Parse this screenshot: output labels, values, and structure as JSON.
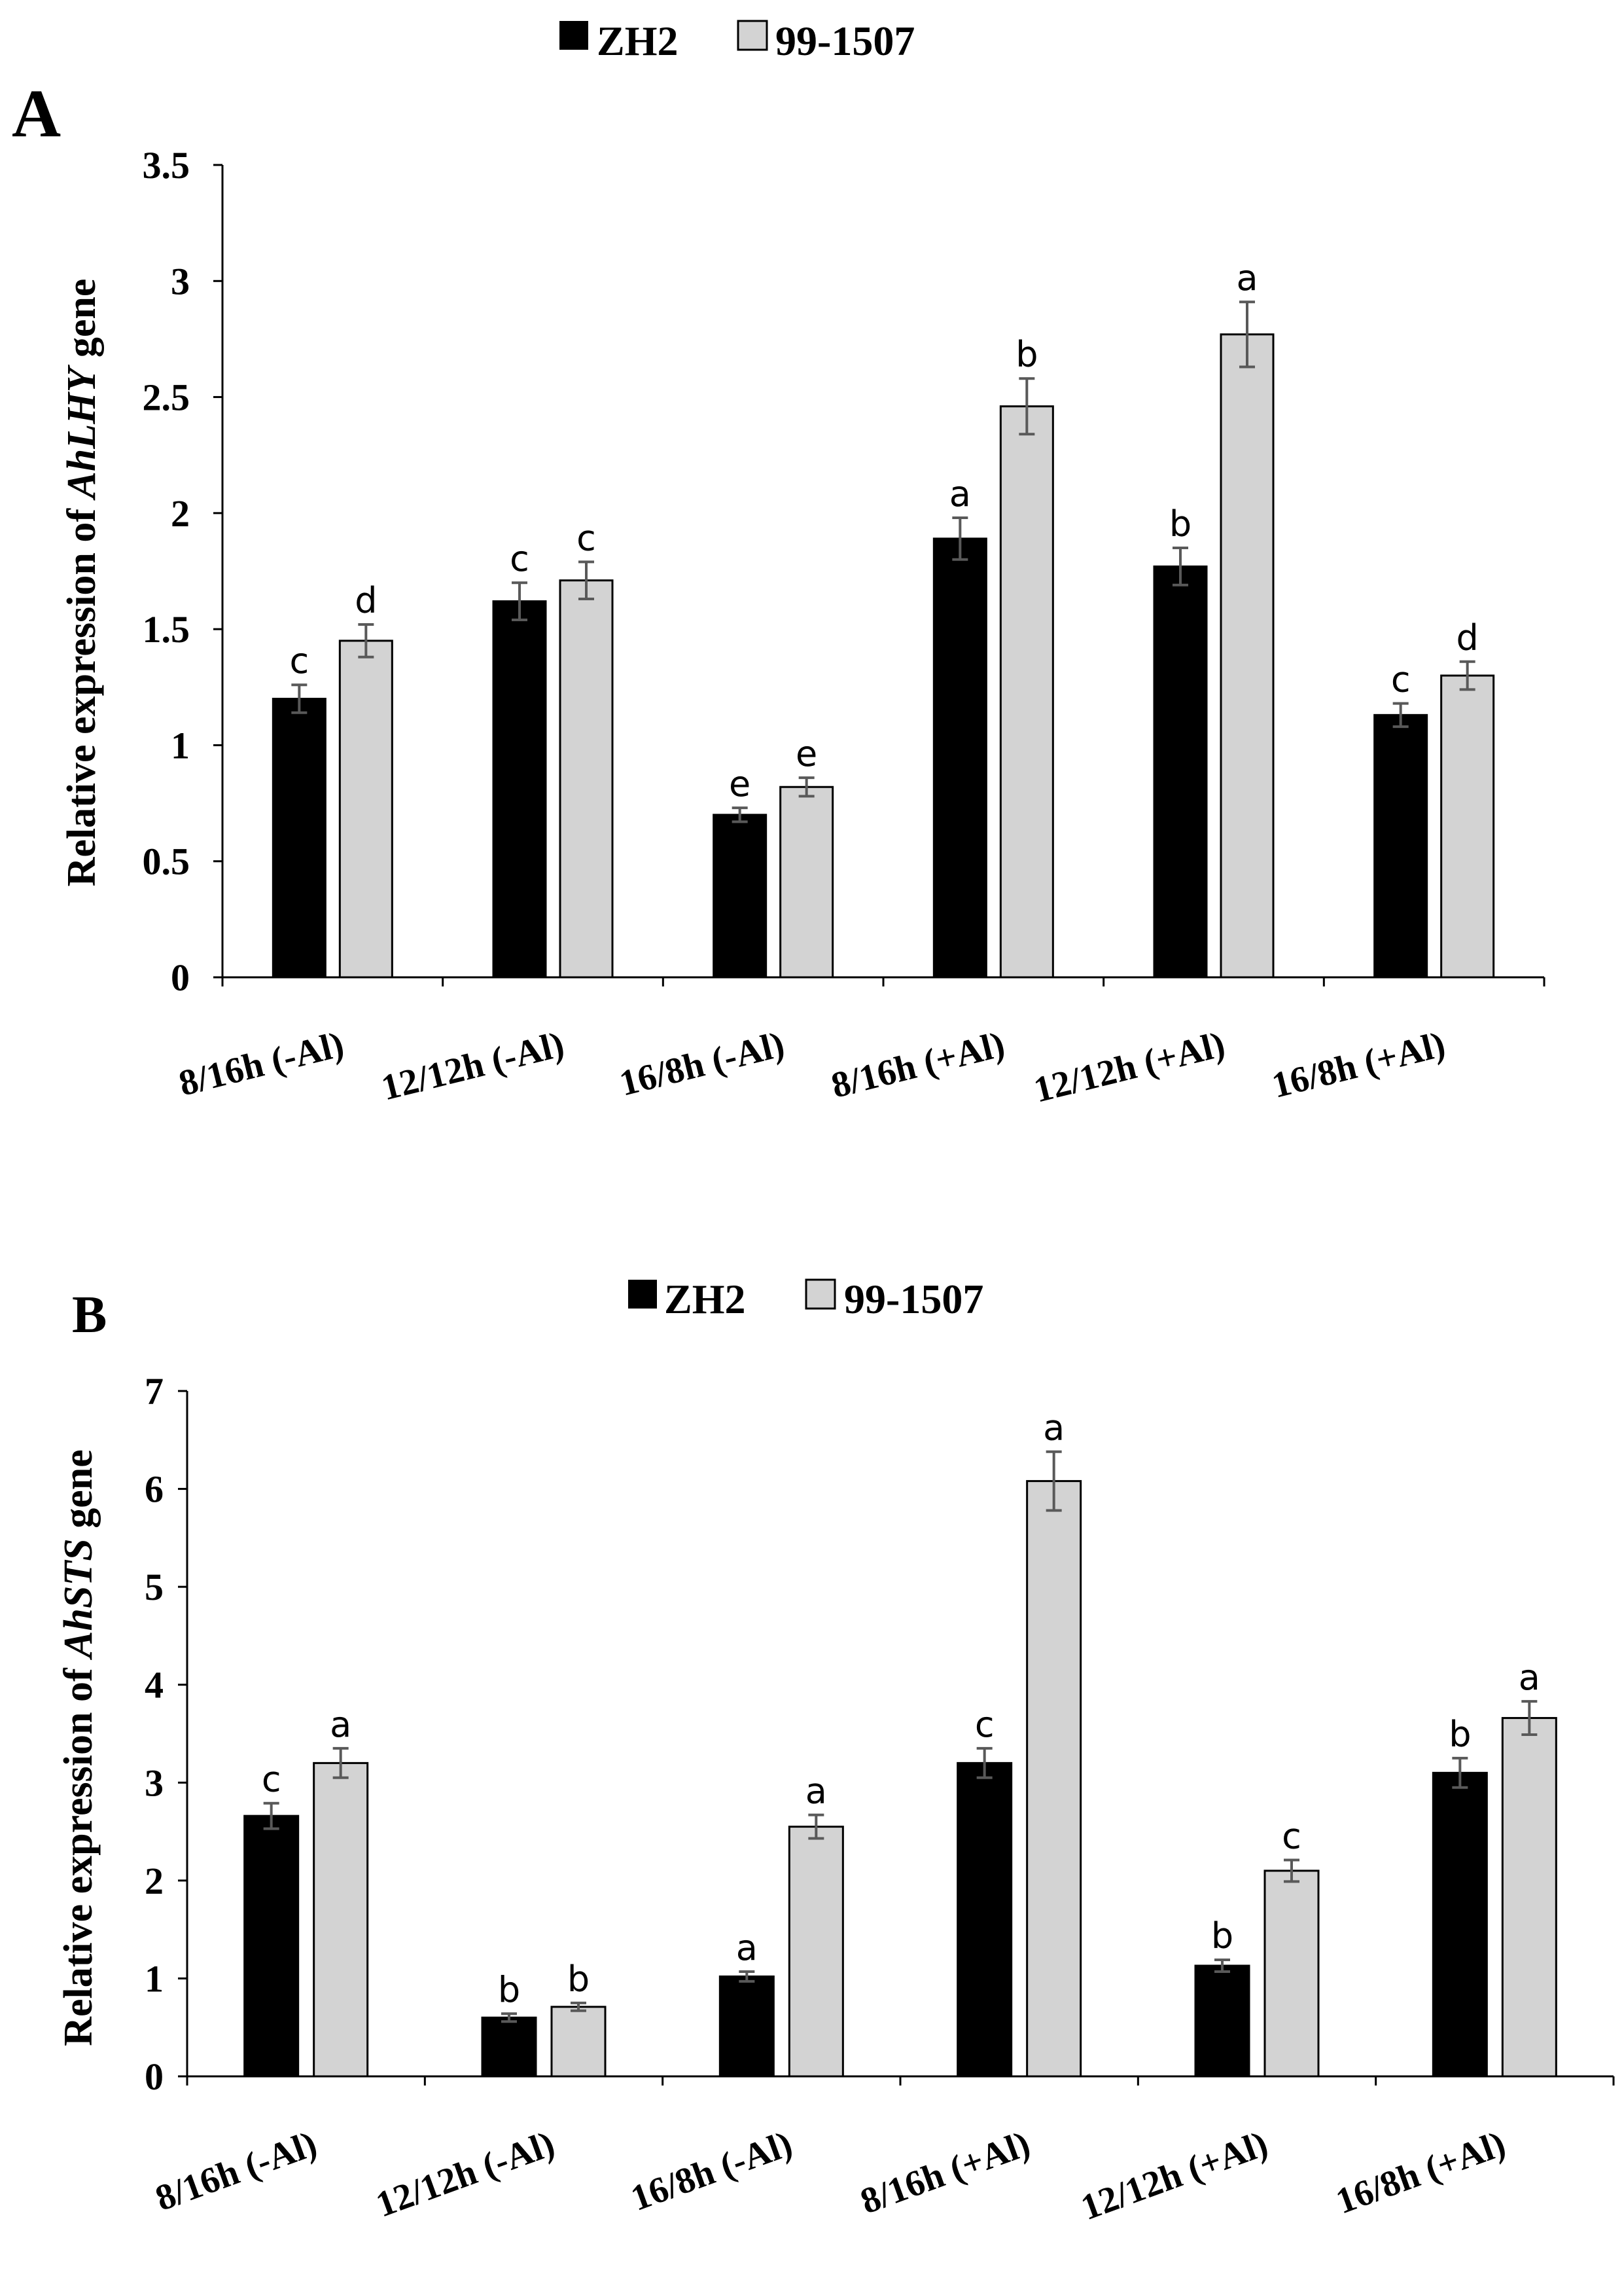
{
  "colors": {
    "zh2": "#000000",
    "line": "#99-1507",
    "s99": "#d3d3d3",
    "axis": "#000000",
    "errorbar": "#595959"
  },
  "panels": [
    {
      "label": "A",
      "legend": [
        "ZH2",
        "99-1507"
      ],
      "ylabel_prefix": "Relative expression of ",
      "ylabel_gene": "AhLHY",
      "ylabel_suffix": " gene",
      "ytick_labels": [
        "0",
        "0.5",
        "1",
        "1.5",
        "2",
        "2.5",
        "3",
        "3.5"
      ]
    },
    {
      "label": "B",
      "legend": [
        "ZH2",
        "99-1507"
      ],
      "ylabel_prefix": "Relative expression of ",
      "ylabel_gene": "AhSTS",
      "ylabel_suffix": " gene",
      "ytick_labels": [
        "0",
        "1",
        "2",
        "3",
        "4",
        "5",
        "6",
        "7"
      ]
    }
  ],
  "chart_data": [
    {
      "type": "bar",
      "title": "A",
      "ylabel": "Relative expression of AhLHY gene",
      "ylim": [
        0,
        3.5
      ],
      "yticks": [
        0,
        0.5,
        1,
        1.5,
        2,
        2.5,
        3,
        3.5
      ],
      "categories": [
        "8/16h (-Al)",
        "12/12h (-Al)",
        "16/8h (-Al)",
        "8/16h (+Al)",
        "12/12h (+Al)",
        "16/8h (+Al)"
      ],
      "series": [
        {
          "name": "ZH2",
          "values": [
            1.2,
            1.62,
            0.7,
            1.89,
            1.77,
            1.13
          ],
          "errors": [
            0.06,
            0.08,
            0.03,
            0.09,
            0.08,
            0.05
          ],
          "letters": [
            "c",
            "c",
            "e",
            "a",
            "b",
            "c"
          ]
        },
        {
          "name": "99-1507",
          "values": [
            1.45,
            1.71,
            0.82,
            2.46,
            2.77,
            1.3
          ],
          "errors": [
            0.07,
            0.08,
            0.04,
            0.12,
            0.14,
            0.06
          ],
          "letters": [
            "d",
            "c",
            "e",
            "b",
            "a",
            "d"
          ]
        }
      ]
    },
    {
      "type": "bar",
      "title": "B",
      "ylabel": "Relative expression of AhSTS gene",
      "ylim": [
        0,
        7
      ],
      "yticks": [
        0,
        1,
        2,
        3,
        4,
        5,
        6,
        7
      ],
      "categories": [
        "8/16h (-Al)",
        "12/12h (-Al)",
        "16/8h (-Al)",
        "8/16h (+Al)",
        "12/12h (+Al)",
        "16/8h (+Al)"
      ],
      "series": [
        {
          "name": "ZH2",
          "values": [
            2.66,
            0.6,
            1.02,
            3.2,
            1.13,
            3.1
          ],
          "errors": [
            0.13,
            0.04,
            0.05,
            0.15,
            0.06,
            0.15
          ],
          "letters": [
            "c",
            "b",
            "a",
            "c",
            "b",
            "b"
          ]
        },
        {
          "name": "99-1507",
          "values": [
            3.2,
            0.71,
            2.55,
            6.08,
            2.1,
            3.66
          ],
          "errors": [
            0.15,
            0.04,
            0.12,
            0.3,
            0.11,
            0.17
          ],
          "letters": [
            "a",
            "b",
            "a",
            "a",
            "c",
            "a"
          ]
        }
      ]
    }
  ]
}
